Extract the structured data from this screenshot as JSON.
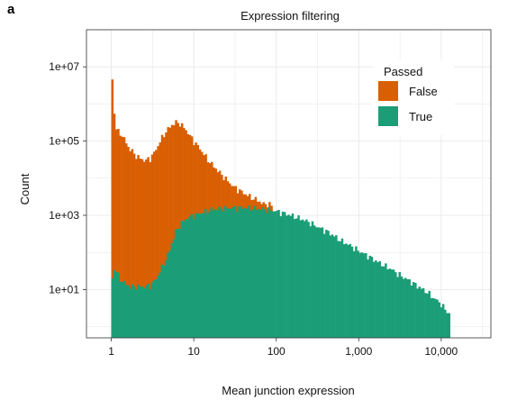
{
  "panel_label": "a",
  "colors": {
    "false": "#d95f02",
    "true": "#1b9e77",
    "grid": "#e6e6e6",
    "axis": "#333333"
  },
  "chart_data": {
    "type": "histogram",
    "title": "Expression filtering",
    "xlabel": "Mean junction expression",
    "ylabel": "Count",
    "x_scale": "log10",
    "y_scale": "log10",
    "xlim": [
      0.5,
      40000
    ],
    "ylim": [
      0.5,
      100000000
    ],
    "x_ticks": [
      1,
      10,
      100,
      1000,
      10000
    ],
    "x_tick_labels": [
      "1",
      "10",
      "100",
      "1,000",
      "10,000"
    ],
    "y_ticks": [
      10,
      1000,
      100000,
      10000000
    ],
    "y_tick_labels": [
      "1e+01",
      "1e+03",
      "1e+05",
      "1e+07"
    ],
    "grid": true,
    "legend": {
      "title": "Passed",
      "position": "top-right"
    },
    "stacked": true,
    "series": [
      {
        "name": "False",
        "color": "#d95f02",
        "points": [
          [
            1.0,
            20000000
          ],
          [
            1.05,
            1500000
          ],
          [
            1.12,
            250000
          ],
          [
            1.2,
            180000
          ],
          [
            1.3,
            160000
          ],
          [
            1.45,
            110000
          ],
          [
            1.6,
            70000
          ],
          [
            1.8,
            52000
          ],
          [
            2.0,
            40000
          ],
          [
            2.3,
            33000
          ],
          [
            2.6,
            30000
          ],
          [
            3.0,
            35000
          ],
          [
            3.5,
            60000
          ],
          [
            4.0,
            110000
          ],
          [
            4.6,
            180000
          ],
          [
            5.3,
            260000
          ],
          [
            6.0,
            320000
          ],
          [
            6.8,
            300000
          ],
          [
            8.0,
            200000
          ],
          [
            10,
            100000
          ],
          [
            12,
            60000
          ],
          [
            15,
            30000
          ],
          [
            20,
            15000
          ],
          [
            25,
            9000
          ],
          [
            30,
            6000
          ],
          [
            40,
            4000
          ],
          [
            50,
            3000
          ],
          [
            60,
            2500
          ],
          [
            70,
            2000
          ],
          [
            80,
            2000
          ],
          [
            90,
            1800
          ]
        ]
      },
      {
        "name": "True",
        "color": "#1b9e77",
        "points": [
          [
            1.0,
            15
          ],
          [
            1.1,
            40
          ],
          [
            1.2,
            25
          ],
          [
            1.3,
            18
          ],
          [
            1.5,
            14
          ],
          [
            1.7,
            12
          ],
          [
            2.0,
            12
          ],
          [
            2.5,
            12
          ],
          [
            3.0,
            13
          ],
          [
            3.5,
            20
          ],
          [
            4.0,
            35
          ],
          [
            4.5,
            60
          ],
          [
            5.0,
            100
          ],
          [
            5.5,
            200
          ],
          [
            6.0,
            350
          ],
          [
            7.0,
            600
          ],
          [
            8.0,
            800
          ],
          [
            10,
            1000
          ],
          [
            13,
            1200
          ],
          [
            16,
            1400
          ],
          [
            20,
            1500
          ],
          [
            25,
            1550
          ],
          [
            30,
            1600
          ],
          [
            40,
            1600
          ],
          [
            50,
            1550
          ],
          [
            60,
            1500
          ],
          [
            70,
            1450
          ],
          [
            80,
            1400
          ],
          [
            100,
            1300
          ],
          [
            130,
            1100
          ],
          [
            160,
            950
          ],
          [
            200,
            800
          ],
          [
            250,
            650
          ],
          [
            300,
            520
          ],
          [
            400,
            380
          ],
          [
            500,
            280
          ],
          [
            600,
            210
          ],
          [
            800,
            150
          ],
          [
            1000,
            110
          ],
          [
            1300,
            80
          ],
          [
            1600,
            60
          ],
          [
            2000,
            45
          ],
          [
            2500,
            35
          ],
          [
            3000,
            26
          ],
          [
            4000,
            18
          ],
          [
            5000,
            13
          ],
          [
            6000,
            10
          ],
          [
            7000,
            8
          ],
          [
            8000,
            6
          ],
          [
            9000,
            5
          ],
          [
            10000,
            4
          ],
          [
            11000,
            3
          ],
          [
            12000,
            2.5
          ],
          [
            12800,
            2
          ]
        ]
      }
    ]
  }
}
